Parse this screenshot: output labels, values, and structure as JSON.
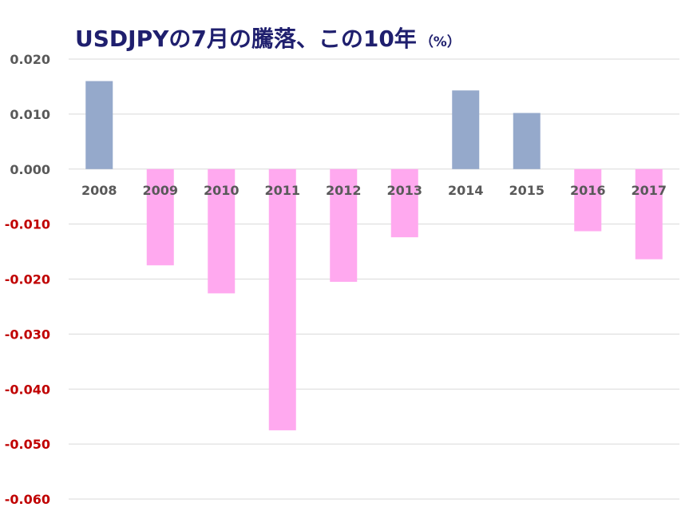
{
  "chart_data": {
    "type": "bar",
    "title": "USDJPYの7月の騰落、この10年",
    "title_unit": "（%）",
    "categories": [
      "2008",
      "2009",
      "2010",
      "2011",
      "2012",
      "2013",
      "2014",
      "2015",
      "2016",
      "2017"
    ],
    "values": [
      0.016,
      -0.0175,
      -0.0226,
      -0.0475,
      -0.0205,
      -0.0124,
      0.0143,
      0.0102,
      -0.0113,
      -0.0164
    ],
    "ylim": [
      -0.06,
      0.02
    ],
    "yticks": [
      0.02,
      0.01,
      0.0,
      -0.01,
      -0.02,
      -0.03,
      -0.04,
      -0.05,
      -0.06
    ],
    "ytick_labels": [
      "0.020",
      "0.010",
      "0.000",
      "-0.010",
      "-0.020",
      "-0.030",
      "-0.040",
      "-0.050",
      "-0.060"
    ],
    "xlabel": "",
    "ylabel": "",
    "grid": true,
    "legend": "none"
  },
  "colors": {
    "positive_bar": "#95a9cb",
    "negative_bar": "#ffa9ef",
    "positive_tick": "#595959",
    "negative_tick": "#c00000",
    "category_label": "#595959",
    "title": "#1f1f6e",
    "grid": "#d9d9d9"
  }
}
